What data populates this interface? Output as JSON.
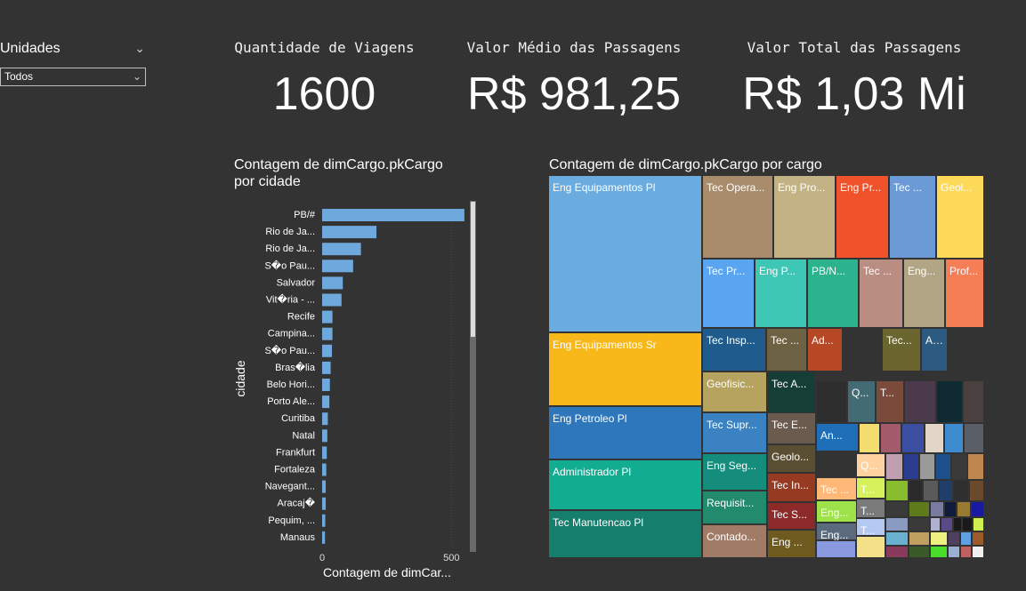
{
  "slicer": {
    "title": "Unidades",
    "value": "Todos"
  },
  "kpis": [
    {
      "label": "Quantidade de Viagens",
      "value": "1600"
    },
    {
      "label": "Valor Médio das Passagens",
      "value": "R$ 981,25"
    },
    {
      "label": "Valor Total das Passagens",
      "value": "R$ 1,03 Mi"
    }
  ],
  "bar_chart": {
    "title_line1": "Contagem de dimCargo.pkCargo",
    "title_line2": "por cidade"
  },
  "treemap": {
    "title": "Contagem de dimCargo.pkCargo por cargo"
  },
  "chart_data": [
    {
      "type": "bar",
      "orientation": "horizontal",
      "title": "Contagem de dimCargo.pkCargo por cidade",
      "xlabel": "Contagem de dimCar...",
      "ylabel": "cidade",
      "xlim": [
        0,
        600
      ],
      "xticks": [
        "0",
        "500"
      ],
      "bar_color": "#6fa8dc",
      "categories": [
        "PB/#",
        "Rio de Ja...",
        "Rio de Ja...",
        "S\u0000o Pau...",
        "Salvador",
        "Vit\u0000ria - ...",
        "Recife",
        "Campina...",
        "S\u0000o Pau...",
        "Bras\u0000lia",
        "Belo Hori...",
        "Porto Ale...",
        "Curitiba",
        "Natal",
        "Frankfurt",
        "Fortaleza",
        "Navegant...",
        "Aracaj\u0000",
        "Pequim, ...",
        "Manaus"
      ],
      "values": [
        550,
        210,
        150,
        120,
        80,
        75,
        40,
        40,
        38,
        33,
        30,
        28,
        22,
        20,
        18,
        16,
        14,
        14,
        12,
        11
      ]
    },
    {
      "type": "treemap",
      "title": "Contagem de dimCargo.pkCargo por cargo",
      "items": [
        {
          "label": "Eng Equipamentos Pl",
          "color": "#6aace0"
        },
        {
          "label": "Eng Equipamentos Sr",
          "color": "#f8b81a"
        },
        {
          "label": "Eng Petroleo Pl",
          "color": "#2e77bb"
        },
        {
          "label": "Administrador Pl",
          "color": "#12ad91"
        },
        {
          "label": "Tec Manutencao Pl",
          "color": "#157e6c"
        },
        {
          "label": "Tec Opera...",
          "color": "#a98c6c"
        },
        {
          "label": "Eng Pro...",
          "color": "#c3b283"
        },
        {
          "label": "Eng Pr...",
          "color": "#f0532b"
        },
        {
          "label": "Tec ...",
          "color": "#6b9ad6"
        },
        {
          "label": "Geol...",
          "color": "#fdd95a"
        },
        {
          "label": "Tec Pr...",
          "color": "#5aa5f2"
        },
        {
          "label": "Eng P...",
          "color": "#3fc7b5"
        },
        {
          "label": "PB/N...",
          "color": "#2bb38e"
        },
        {
          "label": "Tec ...",
          "color": "#b98d82"
        },
        {
          "label": "Eng...",
          "color": "#b2a586"
        },
        {
          "label": "Prof...",
          "color": "#f57e57"
        },
        {
          "label": "Tec Insp...",
          "color": "#1f5c8d"
        },
        {
          "label": "Tec ...",
          "color": "#6d6244"
        },
        {
          "label": "Ad...",
          "color": "#b74825"
        },
        {
          "label": "Tec...",
          "color": "#6b6530"
        },
        {
          "label": "An...",
          "color": "#2d5a80"
        },
        {
          "label": "Geofisic...",
          "color": "#b5a35f"
        },
        {
          "label": "Tec A...",
          "color": "#153e36"
        },
        {
          "label": "Q...",
          "color": "#426b73"
        },
        {
          "label": "T...",
          "color": "#7a4a3a"
        },
        {
          "label": "Tec Supr...",
          "color": "#3a82c2"
        },
        {
          "label": "Tec E...",
          "color": "#6b5a4e"
        },
        {
          "label": "An...",
          "color": "#1f6fb8"
        },
        {
          "label": "Eng Seg...",
          "color": "#148d7d"
        },
        {
          "label": "Geolo...",
          "color": "#5b4f33"
        },
        {
          "label": "Q...",
          "color": "#ffd2a0"
        },
        {
          "label": "Tec ...",
          "color": "#ffb878"
        },
        {
          "label": "T...",
          "color": "#d6f25a"
        },
        {
          "label": "Requisit...",
          "color": "#228a6d"
        },
        {
          "label": "Tec In...",
          "color": "#963a22"
        },
        {
          "label": "Eng...",
          "color": "#9ee24a"
        },
        {
          "label": "T...",
          "color": "#7a7a7a"
        },
        {
          "label": "Contado...",
          "color": "#a27b66"
        },
        {
          "label": "Tec S...",
          "color": "#8c2a2a"
        },
        {
          "label": "Eng...",
          "color": "#5b6b7d"
        },
        {
          "label": "T...",
          "color": "#b3c9f2"
        },
        {
          "label": "Eng ...",
          "color": "#6e5a1e"
        }
      ]
    }
  ]
}
